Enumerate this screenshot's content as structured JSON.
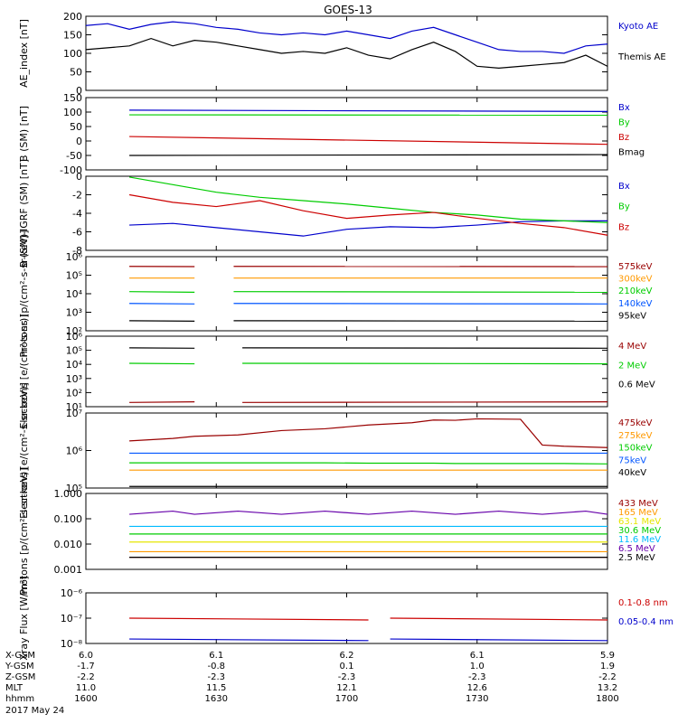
{
  "title": "GOES-13",
  "colors": {
    "black": "#000000",
    "red": "#cc0000",
    "green": "#00cc00",
    "blue": "#0000cc",
    "orange": "#ff9900",
    "bright_blue": "#0055ff",
    "cyan": "#00bbff",
    "yellow": "#e6e600",
    "purple": "#6600aa",
    "dark_red": "#990000"
  },
  "chart_data": [
    {
      "type": "line",
      "ylabel": "AE_index [nT]",
      "ylim": [
        0,
        200
      ],
      "yticks": [
        "0",
        "50",
        "100",
        "150",
        "200"
      ],
      "x": [
        "16:00",
        "16:05",
        "16:10",
        "16:15",
        "16:20",
        "16:25",
        "16:30",
        "16:35",
        "16:40",
        "16:45",
        "16:50",
        "16:55",
        "17:00",
        "17:05",
        "17:10",
        "17:15",
        "17:20",
        "17:25",
        "17:30",
        "17:35",
        "17:40",
        "17:45",
        "17:50",
        "17:55",
        "18:00"
      ],
      "series": [
        {
          "name": "Kyoto AE",
          "values": [
            175,
            180,
            165,
            178,
            185,
            180,
            170,
            165,
            155,
            150,
            155,
            150,
            160,
            150,
            140,
            160,
            170,
            150,
            130,
            110,
            105,
            105,
            100,
            120,
            125
          ]
        },
        {
          "name": "Themis AE",
          "values": [
            110,
            115,
            120,
            140,
            120,
            135,
            130,
            120,
            110,
            100,
            105,
            100,
            115,
            95,
            85,
            110,
            130,
            105,
            65,
            60,
            65,
            70,
            75,
            95,
            65
          ]
        }
      ]
    },
    {
      "type": "line",
      "ylabel": "B (SM) [nT]",
      "ylim": [
        -110,
        150
      ],
      "yticks": [
        "-100",
        "-50",
        "0",
        "50",
        "100",
        "150"
      ],
      "x": [
        "16:10",
        "18:00"
      ],
      "series": [
        {
          "name": "Bx",
          "values": [
            105,
            100
          ]
        },
        {
          "name": "By",
          "values": [
            88,
            87
          ]
        },
        {
          "name": "Bz",
          "values": [
            10,
            -18
          ]
        },
        {
          "name": "Bmag",
          "values": [
            -58,
            -55
          ]
        }
      ]
    },
    {
      "type": "line",
      "ylabel": "B (SM)-IGRF (SM) [nT]",
      "ylim": [
        -8.5,
        0.3
      ],
      "yticks": [
        "-8",
        "-6",
        "-4",
        "-2",
        "0"
      ],
      "x": [
        "16:10",
        "16:20",
        "16:30",
        "16:40",
        "16:50",
        "17:00",
        "17:10",
        "17:20",
        "17:30",
        "17:40",
        "17:50",
        "18:00"
      ],
      "series": [
        {
          "name": "Bx",
          "values": [
            -5.5,
            -5.3,
            -5.8,
            -6.3,
            -6.8,
            -6.0,
            -5.7,
            -5.8,
            -5.5,
            -5.1,
            -5.0,
            -5.0
          ]
        },
        {
          "name": "By",
          "values": [
            0.2,
            -0.7,
            -1.6,
            -2.2,
            -2.6,
            -3.0,
            -3.5,
            -4.0,
            -4.3,
            -4.8,
            -5.0,
            -5.2
          ]
        },
        {
          "name": "Bz",
          "values": [
            -1.9,
            -2.8,
            -3.3,
            -2.6,
            -3.8,
            -4.7,
            -4.3,
            -4.0,
            -4.7,
            -5.3,
            -5.8,
            -6.7
          ]
        }
      ]
    },
    {
      "type": "line",
      "ylabel": "Protons [p/(cm²-s-sr-keV)]",
      "yscale": "log",
      "ylim": [
        100,
        1000000
      ],
      "yticks": [
        "10²",
        "10³",
        "10⁴",
        "10⁵",
        "10⁶"
      ],
      "x_segments": [
        [
          "16:10",
          "16:25"
        ],
        [
          "16:34",
          "18:00"
        ]
      ],
      "series": [
        {
          "name": "575keV",
          "values": [
            300000,
            290000
          ]
        },
        {
          "name": "300keV",
          "values": [
            70000,
            70000
          ]
        },
        {
          "name": "210keV",
          "values": [
            13000,
            12000
          ]
        },
        {
          "name": "140keV",
          "values": [
            3000,
            2800
          ]
        },
        {
          "name": "95keV",
          "values": [
            350,
            330
          ]
        }
      ]
    },
    {
      "type": "line",
      "ylabel": "Electrons [e/(cm²-s-sr)]",
      "yscale": "log",
      "ylim": [
        10,
        1000000
      ],
      "yticks": [
        "10¹",
        "10²",
        "10³",
        "10⁴",
        "10⁵",
        "10⁶"
      ],
      "x_segments": [
        [
          "16:10",
          "16:25"
        ],
        [
          "16:36",
          "18:00"
        ]
      ],
      "series": [
        {
          "name": "4 MeV",
          "values": [
            20,
            22
          ]
        },
        {
          "name": "2 MeV",
          "values": [
            12000,
            11000
          ]
        },
        {
          "name": "0.6 MeV",
          "values": [
            150000,
            140000
          ]
        }
      ]
    },
    {
      "type": "line",
      "ylabel": "Electrons [e/(cm²-s-sr-keV)]",
      "yscale": "log",
      "ylim": [
        100000,
        10000000
      ],
      "yticks": [
        "10⁵",
        "10⁶",
        "10⁷"
      ],
      "x": [
        "16:10",
        "16:20",
        "16:25",
        "16:35",
        "16:45",
        "16:55",
        "17:05",
        "17:15",
        "17:20",
        "17:25",
        "17:30",
        "17:40",
        "17:45",
        "17:50",
        "18:00"
      ],
      "series": [
        {
          "name": "475keV",
          "values": [
            1800000,
            2100000,
            2400000,
            2600000,
            3400000,
            3800000,
            4800000,
            5500000,
            6500000,
            6400000,
            7000000,
            6800000,
            1400000,
            1300000,
            1200000
          ]
        },
        {
          "name": "275keV",
          "values": [
            300000,
            300000,
            300000,
            300000,
            300000,
            300000,
            300000,
            300000,
            300000,
            300000,
            300000,
            300000,
            300000,
            300000,
            300000
          ]
        },
        {
          "name": "150keV",
          "values": [
            470000,
            470000,
            470000,
            470000,
            470000,
            470000,
            460000,
            460000,
            460000,
            450000,
            450000,
            450000,
            450000,
            450000,
            440000
          ]
        },
        {
          "name": "75keV",
          "values": [
            850000,
            850000,
            850000,
            850000,
            850000,
            850000,
            850000,
            850000,
            850000,
            850000,
            850000,
            850000,
            850000,
            850000,
            850000
          ]
        },
        {
          "name": "40keV",
          "values": [
            110000,
            110000,
            110000,
            110000,
            110000,
            110000,
            110000,
            110000,
            110000,
            110000,
            110000,
            110000,
            110000,
            110000,
            110000
          ]
        }
      ]
    },
    {
      "type": "line",
      "ylabel": "Protons [p/(cm²-s-sr-keV)]",
      "yscale": "log",
      "ylim": [
        0.001,
        1.0
      ],
      "yticks": [
        "0.001",
        "0.010",
        "0.100",
        "1.000"
      ],
      "x": [
        "16:10",
        "16:20",
        "16:25",
        "16:35",
        "16:45",
        "16:55",
        "17:05",
        "17:15",
        "17:25",
        "17:35",
        "17:45",
        "17:55",
        "18:00"
      ],
      "series": [
        {
          "name": "433 MeV",
          "values": [
            0.003,
            0.003,
            0.003,
            0.003,
            0.003,
            0.003,
            0.003,
            0.003,
            0.003,
            0.003,
            0.003,
            0.003,
            0.003
          ]
        },
        {
          "name": "165 MeV",
          "values": [
            0.005,
            0.005,
            0.005,
            0.005,
            0.005,
            0.005,
            0.005,
            0.005,
            0.005,
            0.005,
            0.005,
            0.005,
            0.005
          ]
        },
        {
          "name": "63.1 MeV",
          "values": [
            0.012,
            0.012,
            0.012,
            0.012,
            0.012,
            0.012,
            0.012,
            0.012,
            0.012,
            0.012,
            0.012,
            0.012,
            0.012
          ]
        },
        {
          "name": "30.6 MeV",
          "values": [
            0.025,
            0.025,
            0.025,
            0.025,
            0.025,
            0.025,
            0.025,
            0.025,
            0.025,
            0.025,
            0.025,
            0.025,
            0.025
          ]
        },
        {
          "name": "11.6 MeV",
          "values": [
            0.05,
            0.05,
            0.05,
            0.05,
            0.05,
            0.05,
            0.05,
            0.05,
            0.05,
            0.05,
            0.05,
            0.05,
            0.05
          ]
        },
        {
          "name": "6.5 MeV",
          "values": [
            0.15,
            0.2,
            0.15,
            0.2,
            0.15,
            0.2,
            0.15,
            0.2,
            0.15,
            0.2,
            0.15,
            0.2,
            0.15
          ]
        },
        {
          "name": "2.5 MeV",
          "values": [
            0.003,
            0.003,
            0.003,
            0.003,
            0.003,
            0.003,
            0.003,
            0.003,
            0.003,
            0.003,
            0.003,
            0.003,
            0.003
          ]
        }
      ]
    },
    {
      "type": "line",
      "ylabel": "Xray Flux [W/m²]",
      "yscale": "log",
      "ylim": [
        1e-08,
        1e-06
      ],
      "yticks": [
        "10⁻⁸",
        "10⁻⁷",
        "10⁻⁶"
      ],
      "x_segments": [
        [
          "16:10",
          "17:05"
        ],
        [
          "17:10",
          "18:00"
        ]
      ],
      "series": [
        {
          "name": "0.1-0.8 nm",
          "values": [
            1e-07,
            8.5e-08
          ]
        },
        {
          "name": "0.05-0.4 nm",
          "values": [
            1.5e-08,
            1.3e-08
          ]
        }
      ]
    }
  ],
  "xaxis": {
    "row_labels": [
      "X-GSM",
      "Y-GSM",
      "Z-GSM",
      "MLT",
      "hhmm",
      "2017 May 24"
    ],
    "columns": [
      {
        "x_gsm": "6.0",
        "y_gsm": "-1.7",
        "z_gsm": "-2.2",
        "mlt": "11.0",
        "hhmm": "1600"
      },
      {
        "x_gsm": "6.1",
        "y_gsm": "-0.8",
        "z_gsm": "-2.3",
        "mlt": "11.5",
        "hhmm": "1630"
      },
      {
        "x_gsm": "6.2",
        "y_gsm": "0.1",
        "z_gsm": "-2.3",
        "mlt": "12.1",
        "hhmm": "1700"
      },
      {
        "x_gsm": "6.1",
        "y_gsm": "1.0",
        "z_gsm": "-2.3",
        "mlt": "12.6",
        "hhmm": "1730"
      },
      {
        "x_gsm": "5.9",
        "y_gsm": "1.9",
        "z_gsm": "-2.2",
        "mlt": "13.2",
        "hhmm": "1800"
      }
    ]
  }
}
